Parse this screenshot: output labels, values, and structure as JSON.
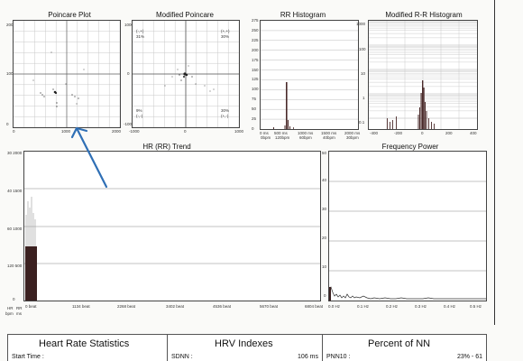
{
  "panels": {
    "poincare": {
      "title": "Poincare Plot",
      "y_ticks": [
        "2000",
        "1000",
        "0"
      ],
      "x_ticks": [
        "0",
        "1000",
        "2000"
      ]
    },
    "modified_poincare": {
      "title": "Modified Poincare",
      "quadrants": {
        "tl": "(-,+)",
        "tl_pct": "31%",
        "tr": "(+,+)",
        "tr_pct": "30%",
        "bl_pct": "9%",
        "bl": "(-,-)",
        "br_pct": "30%",
        "br": "(+,-)"
      },
      "x_ticks": [
        "-1000",
        "0",
        "1000"
      ],
      "y_ticks": [
        "1000",
        "0",
        "-1000"
      ]
    },
    "rr_histogram": {
      "title": "RR Histogram",
      "y_ticks": [
        "275",
        "250",
        "225",
        "200",
        "175",
        "150",
        "125",
        "100",
        "75",
        "50",
        "25",
        "0"
      ],
      "x_ticks": [
        "0 ms",
        "0bpm",
        "500 ms",
        "120bpm",
        "1000 ms",
        "60bpm",
        "1500 ms",
        "40bpm",
        "2000 ms",
        "30bpm"
      ]
    },
    "modified_rr_histogram": {
      "title": "Modified R-R Histogram",
      "y_ticks": [
        "1000",
        "100",
        "10",
        "1",
        "0.1"
      ],
      "x_ticks": [
        "-400",
        "-200",
        "0",
        "200",
        "400"
      ]
    },
    "hr_trend": {
      "title": "HR (RR) Trend",
      "y_ticks": [
        "30 2000",
        "40 1500",
        "60 1000",
        "120 500",
        "0"
      ],
      "x_ticks": [
        "0 beat",
        "1134 beat",
        "2268 beat",
        "3402 beat",
        "4536 beat",
        "5670 beat",
        "6804 beat"
      ],
      "y_units": [
        "HR",
        "bpm",
        "RR",
        "ms"
      ]
    },
    "frequency_power": {
      "title": "Frequency Power",
      "y_ticks": [
        "50",
        "40",
        "30",
        "20",
        "10",
        "0"
      ],
      "x_ticks": [
        "0.0 Hz",
        "0.1 Hz",
        "0.2 Hz",
        "0.3 Hz",
        "0.4 Hz",
        "0.5 Hz"
      ]
    }
  },
  "bottom": {
    "heart_rate": {
      "title": "Heart Rate Statistics",
      "field": "Start Time :"
    },
    "hrv": {
      "title": "HRV Indexes",
      "field": "SDNN :",
      "value": "106 ms"
    },
    "nn": {
      "title": "Percent of NN",
      "field": "PNN10 :",
      "value": "23% - 61"
    }
  },
  "colors": {
    "ink": "#222222",
    "grid": "#bbbbbb",
    "arrow": "#2f6fb5"
  }
}
